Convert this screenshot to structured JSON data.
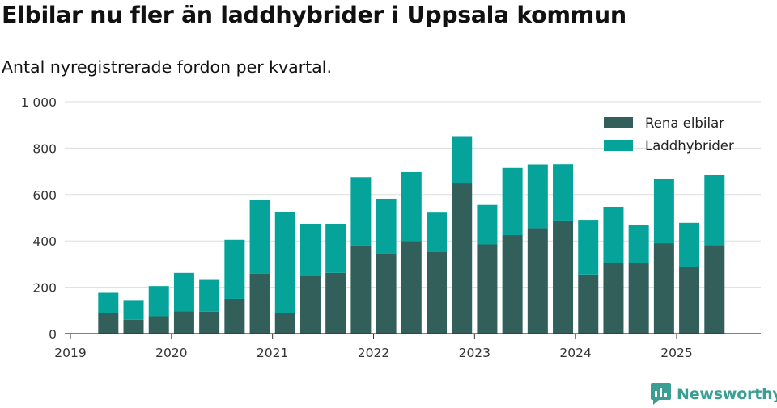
{
  "title": "Elbilar nu fler än laddhybrider i Uppsala kommun",
  "subtitle": "Antal nyregistrerade fordon per kvartal.",
  "brand": {
    "name": "Newsworthy",
    "color": "#3a9e93",
    "icon": "newsworthy-logo-icon"
  },
  "colors": {
    "Rena elbilar": "#335f5a",
    "Laddhybrider": "#06a39b",
    "grid": "#dddddd",
    "axis": "#333333"
  },
  "chart_data": {
    "type": "bar",
    "stacked": true,
    "x_tick_labels": [
      "2019",
      "2020",
      "2021",
      "2022",
      "2023",
      "2024",
      "2025"
    ],
    "y_tick_labels": [
      "0",
      "200",
      "400",
      "600",
      "800",
      "1 000"
    ],
    "y_ticks": [
      0,
      200,
      400,
      600,
      800,
      1000
    ],
    "ylim": [
      0,
      1000
    ],
    "grid": true,
    "legend_position": "top-right",
    "categories": [
      "2019-Q2",
      "2019-Q3",
      "2019-Q4",
      "2020-Q1",
      "2020-Q2",
      "2020-Q3",
      "2020-Q4",
      "2021-Q1",
      "2021-Q2",
      "2021-Q3",
      "2021-Q4",
      "2022-Q1",
      "2022-Q2",
      "2022-Q3",
      "2022-Q4",
      "2023-Q1",
      "2023-Q2",
      "2023-Q3",
      "2023-Q4",
      "2024-Q1",
      "2024-Q2",
      "2024-Q3",
      "2024-Q4",
      "2025-Q1",
      "2025-Q2"
    ],
    "series": [
      {
        "name": "Rena elbilar",
        "values": [
          90,
          60,
          75,
          97,
          95,
          150,
          258,
          88,
          250,
          262,
          380,
          345,
          400,
          352,
          648,
          385,
          425,
          455,
          488,
          255,
          305,
          305,
          390,
          288,
          382
        ]
      },
      {
        "name": "Laddhybrider",
        "values": [
          86,
          85,
          130,
          165,
          140,
          255,
          320,
          438,
          224,
          212,
          295,
          237,
          297,
          170,
          204,
          170,
          290,
          275,
          243,
          236,
          242,
          165,
          278,
          190,
          303
        ]
      }
    ]
  }
}
